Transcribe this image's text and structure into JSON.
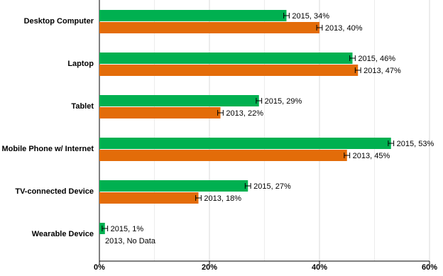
{
  "chart_data": {
    "type": "barh",
    "categories": [
      "Desktop Computer",
      "Laptop",
      "Tablet",
      "Mobile Phone w/ Internet",
      "TV-connected Device",
      "Wearable Device"
    ],
    "series": [
      {
        "color": "#00b050",
        "values": [
          34,
          46,
          29,
          53,
          27,
          1
        ],
        "errors": [
          0.5,
          0.5,
          0.5,
          0.5,
          0.5,
          0.5
        ],
        "value_labels": [
          "2015, 34%",
          "2015, 46%",
          "2015, 29%",
          "2015, 53%",
          "2015, 27%",
          "2015, 1%"
        ]
      },
      {
        "color": "#e36c09",
        "values": [
          40,
          47,
          22,
          45,
          18,
          null
        ],
        "errors": [
          0.5,
          0.5,
          0.5,
          0.5,
          0.5,
          null
        ],
        "value_labels": [
          "2013, 40%",
          "2013, 47%",
          "2013, 22%",
          "2013, 45%",
          "2013, 18%",
          "2013, No Data"
        ]
      }
    ],
    "xlim": [
      0,
      60
    ],
    "xticks": [
      {
        "value": 0,
        "label": "0%"
      },
      {
        "value": 20,
        "label": "20%"
      },
      {
        "value": 40,
        "label": "40%"
      },
      {
        "value": 60,
        "label": "60%"
      }
    ],
    "minor_xticks": [
      10,
      30,
      50
    ],
    "grid": true
  }
}
